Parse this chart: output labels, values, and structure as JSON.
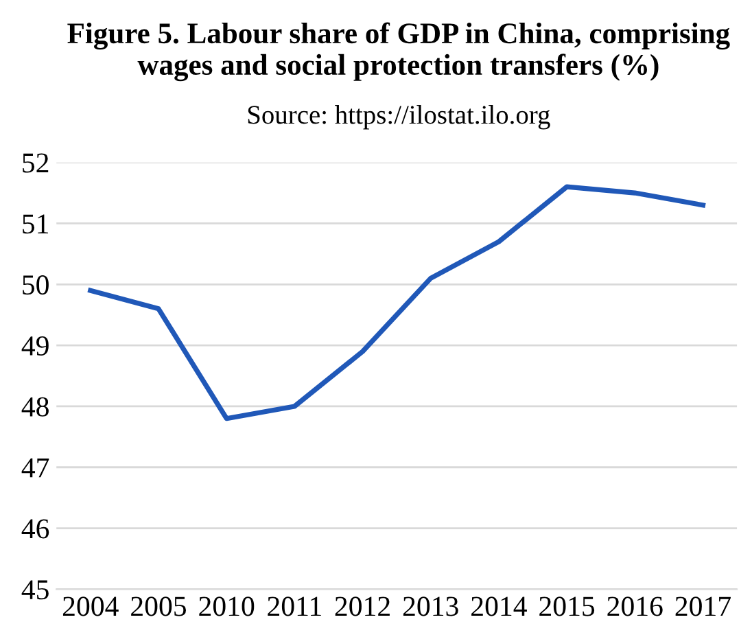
{
  "chart_data": {
    "type": "line",
    "title": "Figure 5. Labour share of GDP in China, comprising\nwages and social protection transfers (%)",
    "subtitle": "Source: https://ilostat.ilo.org",
    "categories": [
      "2004",
      "2005",
      "2010",
      "2011",
      "2012",
      "2013",
      "2014",
      "2015",
      "2016",
      "2017"
    ],
    "series": [
      {
        "color": "#2058b8",
        "values": [
          49.9,
          49.6,
          47.8,
          48.0,
          48.9,
          50.1,
          50.7,
          51.6,
          51.5,
          51.3
        ]
      }
    ],
    "ylim": [
      45,
      52
    ],
    "yticks": [
      45,
      46,
      47,
      48,
      49,
      50,
      51,
      52
    ],
    "grid": "y",
    "marker": "none",
    "line_style": "solid"
  }
}
